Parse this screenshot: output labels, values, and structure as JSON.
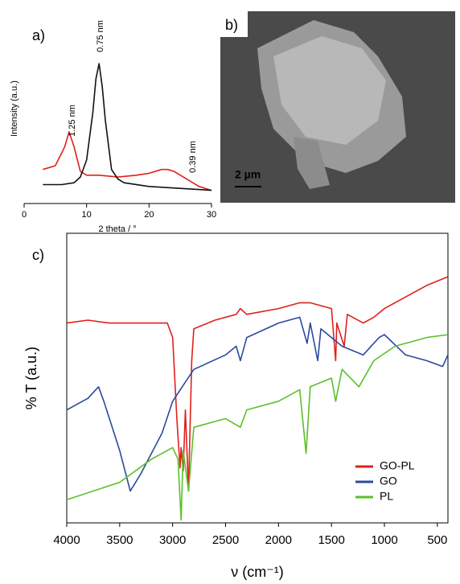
{
  "chart_data": [
    {
      "type": "line",
      "label": "a)",
      "y_label": "Intensity (a.u.)",
      "x_label": "2 theta / °",
      "xlim": [
        0,
        30
      ],
      "xticks": [
        0,
        10,
        20,
        30
      ],
      "ylim": [
        0,
        100
      ],
      "annotations": [
        "0.75 nm",
        "1.25 nm",
        "0.39 nm"
      ],
      "series": [
        {
          "color": "#e0201b",
          "x": [
            3,
            5,
            6.5,
            7.2,
            8,
            9,
            10,
            12,
            15,
            18,
            20,
            22,
            23,
            24,
            26,
            28,
            30
          ],
          "values": [
            18,
            20,
            30,
            38,
            30,
            17,
            15,
            15,
            14,
            15,
            16,
            18,
            18,
            17,
            13,
            9,
            7
          ]
        },
        {
          "color": "#111111",
          "x": [
            3,
            6,
            8,
            9,
            10,
            11,
            11.5,
            12,
            12.5,
            13,
            14,
            15,
            16,
            20,
            25,
            30
          ],
          "values": [
            10,
            10,
            11,
            14,
            23,
            48,
            66,
            74,
            62,
            44,
            18,
            13,
            11,
            9,
            8,
            7
          ]
        }
      ]
    },
    {
      "type": "line",
      "label": "c)",
      "y_label": "% T (a.u.)",
      "x_label": "ν (cm⁻¹)",
      "xlim": [
        4000,
        400
      ],
      "xticks": [
        4000,
        3500,
        3000,
        2500,
        2000,
        1500,
        1000,
        500
      ],
      "ylim": [
        0,
        100
      ],
      "legend": "lower right",
      "series": [
        {
          "name": "GO-PL",
          "color": "#e0201b",
          "x": [
            4000,
            3800,
            3600,
            3400,
            3200,
            3050,
            3000,
            2960,
            2930,
            2920,
            2900,
            2880,
            2850,
            2820,
            2800,
            2600,
            2400,
            2360,
            2300,
            2000,
            1800,
            1700,
            1600,
            1500,
            1460,
            1450,
            1380,
            1350,
            1200,
            1100,
            1000,
            800,
            600,
            400
          ],
          "values": [
            69,
            70,
            69,
            69,
            69,
            69,
            64,
            36,
            19,
            26,
            18,
            39,
            11,
            56,
            67,
            70,
            72,
            74,
            72,
            74,
            76,
            76,
            75,
            74,
            56,
            69,
            61,
            72,
            69,
            71,
            74,
            78,
            82,
            85
          ]
        },
        {
          "name": "GO",
          "color": "#2b4a9e",
          "x": [
            4000,
            3800,
            3700,
            3650,
            3500,
            3400,
            3300,
            3100,
            3000,
            2800,
            2500,
            2400,
            2360,
            2300,
            2000,
            1800,
            1730,
            1700,
            1630,
            1600,
            1500,
            1400,
            1200,
            1050,
            1000,
            800,
            600,
            450,
            400
          ],
          "values": [
            39,
            43,
            47,
            42,
            25,
            11,
            17,
            31,
            42,
            53,
            58,
            61,
            56,
            64,
            69,
            71,
            62,
            69,
            56,
            67,
            64,
            61,
            58,
            64,
            65,
            58,
            56,
            54,
            58
          ]
        },
        {
          "name": "PL",
          "color": "#5cbf2a",
          "x": [
            4000,
            3500,
            3200,
            3000,
            2950,
            2920,
            2900,
            2850,
            2800,
            2500,
            2360,
            2300,
            2000,
            1800,
            1740,
            1700,
            1500,
            1460,
            1400,
            1240,
            1100,
            900,
            600,
            400
          ],
          "values": [
            8,
            14,
            22,
            26,
            22,
            1,
            25,
            11,
            33,
            36,
            33,
            39,
            42,
            46,
            24,
            47,
            50,
            42,
            53,
            47,
            56,
            61,
            64,
            65
          ]
        }
      ]
    }
  ],
  "image": {
    "label": "b)",
    "scale_bar": "2 µm"
  }
}
